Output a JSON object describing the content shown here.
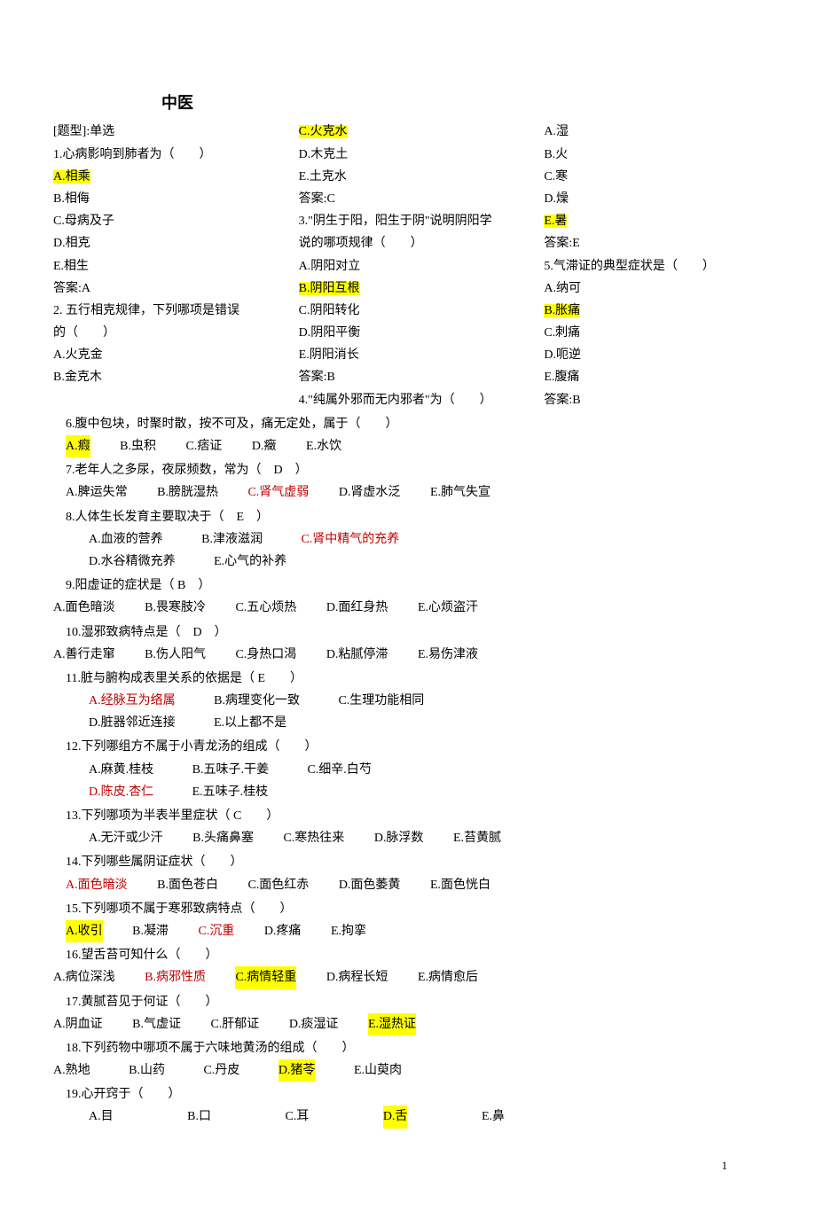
{
  "title": "中医",
  "section_label": "[题型]:单选",
  "col1": {
    "q1": {
      "stem": "1.心病影响到肺者为（　　）",
      "A": "A.相乘",
      "B": "B.相侮",
      "C": "C.母病及子",
      "D": "D.相克",
      "E": "E.相生",
      "ans": "答案:A"
    },
    "q2": {
      "stem": "2. 五行相克规律，下列哪项是错误",
      "stem2": "的（　　）",
      "A": "A.火克金",
      "B": "B.金克木"
    }
  },
  "col2": {
    "q2c": {
      "C": "C.火克水",
      "D": "D.木克土",
      "E": "E.土克水",
      "ans": "答案:C"
    },
    "q3": {
      "stem1": "3.\"阴生于阳，阳生于阴\"说明阴阳学",
      "stem2": "说的哪项规律（　　）",
      "A": "A.阴阳对立",
      "B": "B.阴阳互根",
      "C": "C.阴阳转化",
      "D": "D.阴阳平衡",
      "E": "E.阴阳消长",
      "ans": "答案:B"
    },
    "q4": {
      "stem": "4.\"纯属外邪而无内邪者\"为（　　）"
    }
  },
  "col3": {
    "q4c": {
      "A": "A.湿",
      "B": "B.火",
      "C": "C.寒",
      "D": "D.燥",
      "E": "E.暑",
      "ans": "答案:E"
    },
    "q5": {
      "stem": "5.气滞证的典型症状是（　　）",
      "A": "A.纳可",
      "B": "B.胀痛",
      "C": "C.刺痛",
      "D": "D.呃逆",
      "E": "E.腹痛",
      "ans": "答案:B"
    }
  },
  "q6": {
    "stem": "6.腹中包块，时聚时散，按不可及，痛无定处，属于（　　）",
    "A": "A.瘕",
    "B": "B.虫积",
    "C": "C.痞证",
    "D": "D.癥",
    "E": "E.水饮"
  },
  "q7": {
    "stem": "7.老年人之多尿，夜尿频数，常为（　D　）",
    "A": "A.脾运失常",
    "B": "B.膀胱湿热",
    "C": "C.肾气虚弱",
    "D": "D.肾虚水泛",
    "E": "E.肺气失宣"
  },
  "q8": {
    "stem": "8.人体生长发育主要取决于（　E　）",
    "A": "A.血液的营养",
    "B": "B.津液滋润",
    "C": "C.肾中精气的充养",
    "D": "D.水谷精微充养",
    "E": "E.心气的补养"
  },
  "q9": {
    "stem": "9.阳虚证的症状是（ B　）",
    "A": "A.面色暗淡",
    "B": "B.畏寒肢冷",
    "C": "C.五心烦热",
    "D": "D.面红身热",
    "E": "E.心烦盗汗"
  },
  "q10": {
    "stem": "10.湿邪致病特点是（　D　）",
    "A": "A.善行走窜",
    "B": "B.伤人阳气",
    "C": "C.身热口渴",
    "D": "D.粘腻停滞",
    "E": "E.易伤津液"
  },
  "q11": {
    "stem": "11.脏与腑构成表里关系的依据是（ E　　）",
    "A": "A.经脉互为络属",
    "B": "B.病理变化一致",
    "C": "C.生理功能相同",
    "D": "D.脏器邻近连接",
    "E": "E.以上都不是"
  },
  "q12": {
    "stem": "12.下列哪组方不属于小青龙汤的组成（　　）",
    "A": "A.麻黄.桂枝",
    "B": "B.五味子.干姜",
    "C": "C.细辛.白芍",
    "D": "D.陈皮.杏仁",
    "E": "E.五味子.桂枝"
  },
  "q13": {
    "stem": "13.下列哪项为半表半里症状（ C　　）",
    "A": "A.无汗或少汗",
    "B": "B.头痛鼻塞",
    "C": "C.寒热往来",
    "D": "D.脉浮数",
    "E": "E.苔黄腻"
  },
  "q14": {
    "stem": "14.下列哪些属阴证症状（　　）",
    "A": "A.面色暗淡",
    "B": "B.面色苍白",
    "C": "C.面色红赤",
    "D": "D.面色萎黄",
    "E": "E.面色恍白"
  },
  "q15": {
    "stem": "15.下列哪项不属于寒邪致病特点（　　）",
    "A": "A.收引",
    "B": "B.凝滞",
    "C": "C.沉重",
    "D": "D.疼痛",
    "E": "E.拘挛"
  },
  "q16": {
    "stem": "16.望舌苔可知什么（　　）",
    "A": "A.病位深浅",
    "B": "B.病邪性质",
    "C": "C.病情轻重",
    "D": "D.病程长短",
    "E": "E.病情愈后"
  },
  "q17": {
    "stem": "17.黄腻苔见于何证（　　）",
    "A": "A.阴血证",
    "B": "B.气虚证",
    "C": "C.肝郁证",
    "D": "D.痰湿证",
    "E": "E.湿热证"
  },
  "q18": {
    "stem": "18.下列药物中哪项不属于六味地黄汤的组成（　　）",
    "A": "A.熟地",
    "B": "B.山药",
    "C": "C.丹皮",
    "D": "D.猪苓",
    "E": "E.山萸肉"
  },
  "q19": {
    "stem": "19.心开窍于（　　）",
    "A": "A.目",
    "B": "B.口",
    "C": "C.耳",
    "D": "D.舌",
    "E": "E.鼻"
  },
  "page": "1"
}
